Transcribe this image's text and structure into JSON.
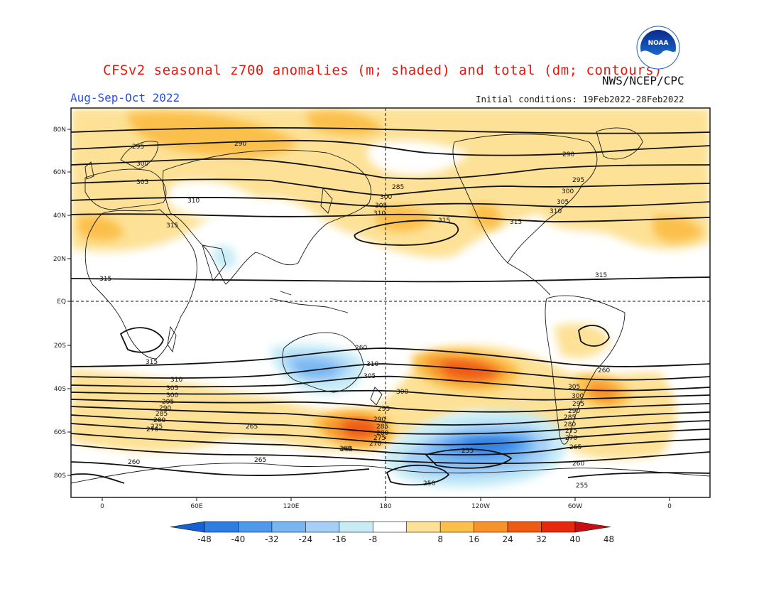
{
  "header": {
    "title": "CFSv2 seasonal z700 anomalies (m; shaded) and total (dm; contours)",
    "agency": "NWS/NCEP/CPC",
    "season": "Aug-Sep-Oct 2022",
    "initial_conditions": "Initial conditions: 19Feb2022-28Feb2022",
    "logo_text": "NOAA"
  },
  "map": {
    "lat_labels": [
      "80N",
      "60N",
      "40N",
      "20N",
      "EQ",
      "20S",
      "40S",
      "60S",
      "80S"
    ],
    "lon_labels": [
      "0",
      "60E",
      "120E",
      "180",
      "120W",
      "60W",
      "0"
    ]
  },
  "colorbar": {
    "levels": [
      "-48",
      "-40",
      "-32",
      "-24",
      "-16",
      "-8",
      "8",
      "16",
      "24",
      "32",
      "40",
      "48"
    ],
    "colors": [
      "#1560d2",
      "#2e7de2",
      "#4e99ec",
      "#78b6f2",
      "#a4d0f8",
      "#c8ecf6",
      "#ffffff",
      "#fde196",
      "#fbc04c",
      "#f7932a",
      "#ef5a14",
      "#e6280c",
      "#c80e10"
    ]
  },
  "contour_labels": [
    "295",
    "290",
    "300",
    "305",
    "310",
    "315",
    "315",
    "285",
    "300",
    "305",
    "310",
    "315",
    "315",
    "290",
    "295",
    "300",
    "305",
    "310",
    "315",
    "310",
    "305",
    "300",
    "295",
    "290",
    "285",
    "280",
    "275",
    "270",
    "265",
    "260",
    "310",
    "305",
    "300",
    "295",
    "290",
    "285",
    "280",
    "275",
    "270",
    "265",
    "260",
    "305",
    "300",
    "295",
    "290",
    "285",
    "280",
    "275",
    "270",
    "265",
    "260",
    "255",
    "260",
    "265",
    "260",
    "255",
    "250",
    "315"
  ]
}
